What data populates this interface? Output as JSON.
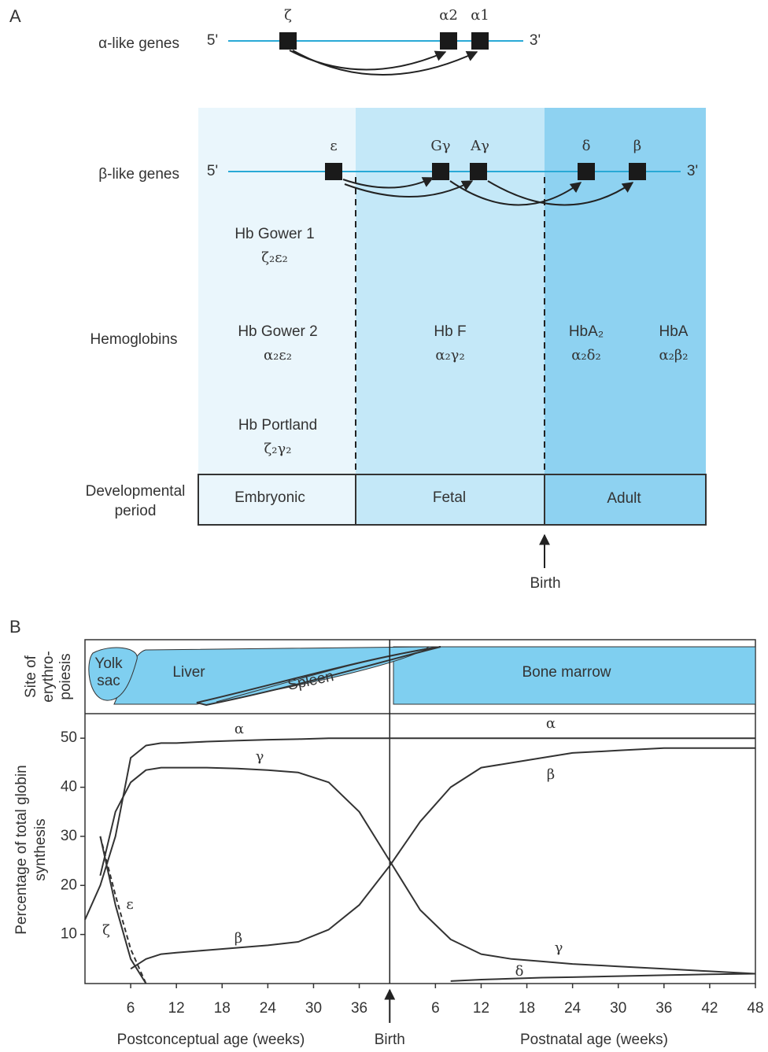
{
  "panel_a": {
    "label": "A",
    "alpha_row": {
      "label": "α-like genes",
      "five": "5'",
      "three": "3'",
      "genes": [
        "ζ",
        "α2",
        "α1"
      ]
    },
    "beta_row": {
      "label": "β-like genes",
      "five": "5'",
      "three": "3'",
      "genes": [
        "ε",
        "Gγ",
        "Aγ",
        "δ",
        "β"
      ]
    },
    "hemoglobins": {
      "label": "Hemoglobins",
      "items": [
        {
          "name": "Hb Gower 1",
          "formula": "ζ₂ε₂"
        },
        {
          "name": "Hb Gower 2",
          "formula": "α₂ε₂"
        },
        {
          "name": "Hb Portland",
          "formula": "ζ₂γ₂"
        },
        {
          "name": "Hb F",
          "formula": "α₂γ₂"
        },
        {
          "name": "HbA₂",
          "formula": "α₂δ₂"
        },
        {
          "name": "HbA",
          "formula": "α₂β₂"
        }
      ]
    },
    "period": {
      "label": [
        "Developmental",
        "period"
      ],
      "stages": [
        "Embryonic",
        "Fetal",
        "Adult"
      ]
    },
    "birth": "Birth"
  },
  "chart_data": {
    "type": "line",
    "panel_label": "B",
    "site": {
      "label": [
        "Site of",
        "erythro-",
        "poiesis"
      ],
      "yolk_sac": [
        "Yolk",
        "sac"
      ],
      "liver": "Liver",
      "spleen": "Spleen",
      "bone_marrow": "Bone marrow"
    },
    "y_label": [
      "Percentage of total globin",
      "synthesis"
    ],
    "x_labels": [
      "Postconceptual age (weeks)",
      "Postnatal age (weeks)"
    ],
    "birth": {
      "value": 40,
      "label": "Birth"
    },
    "x": [
      0,
      2,
      4,
      6,
      8,
      10,
      12,
      16,
      20,
      24,
      28,
      32,
      36,
      40,
      44,
      48,
      52,
      56,
      60,
      64,
      70,
      76,
      82,
      88
    ],
    "series": [
      {
        "name": "α",
        "color": "#333333",
        "values": [
          13,
          20,
          30,
          46,
          48.5,
          49,
          49,
          49.3,
          49.5,
          49.7,
          49.8,
          50,
          50,
          50,
          50,
          50,
          50,
          50,
          50,
          50,
          50,
          50,
          50,
          50
        ]
      },
      {
        "name": "γ",
        "color": "#333333",
        "values": [
          null,
          22,
          35,
          41,
          43.5,
          44,
          44,
          44,
          43.8,
          43.5,
          43,
          41,
          35,
          25,
          15,
          9,
          6,
          5,
          4.5,
          4,
          3.5,
          3,
          2.5,
          2
        ]
      },
      {
        "name": "β",
        "color": "#333333",
        "values": [
          null,
          null,
          null,
          3,
          5,
          6,
          6.3,
          6.8,
          7.3,
          7.8,
          8.5,
          11,
          16,
          24,
          33,
          40,
          44,
          45,
          46,
          47,
          47.5,
          48,
          48,
          48
        ]
      },
      {
        "name": "ε",
        "color": "#333333",
        "style": "dashed",
        "values": [
          null,
          30,
          18,
          7,
          0,
          null,
          null,
          null,
          null,
          null,
          null,
          null,
          null,
          null,
          null,
          null,
          null,
          null,
          null,
          null,
          null,
          null,
          null,
          null
        ]
      },
      {
        "name": "ζ",
        "color": "#333333",
        "values": [
          null,
          30,
          16,
          5,
          0,
          null,
          null,
          null,
          null,
          null,
          null,
          null,
          null,
          null,
          null,
          null,
          null,
          null,
          null,
          null,
          null,
          null,
          null,
          null
        ]
      },
      {
        "name": "δ",
        "color": "#333333",
        "values": [
          null,
          null,
          null,
          null,
          null,
          null,
          null,
          null,
          null,
          null,
          null,
          null,
          null,
          null,
          null,
          0.5,
          0.8,
          1,
          1.2,
          1.3,
          1.5,
          1.7,
          1.9,
          2
        ]
      }
    ],
    "xlim": [
      0,
      88
    ],
    "xticks": [
      6,
      12,
      18,
      24,
      30,
      36,
      {
        "value": 46,
        "label": "6"
      },
      {
        "value": 52,
        "label": "12"
      },
      {
        "value": 58,
        "label": "18"
      },
      {
        "value": 64,
        "label": "24"
      },
      {
        "value": 70,
        "label": "30"
      },
      {
        "value": 76,
        "label": "36"
      },
      {
        "value": 82,
        "label": "42"
      },
      {
        "value": 88,
        "label": "48"
      }
    ],
    "ylim": [
      0,
      55
    ],
    "yticks": [
      10,
      20,
      30,
      40,
      50
    ]
  }
}
